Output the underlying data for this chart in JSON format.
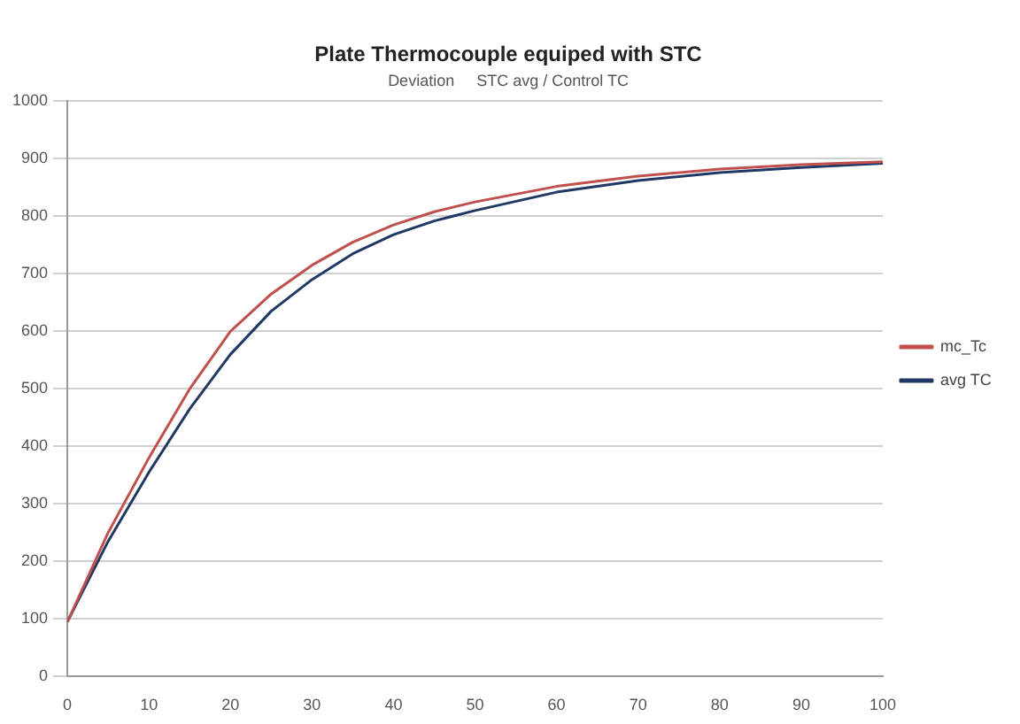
{
  "chart_data": {
    "type": "line",
    "title": "Plate Thermocouple equiped with STC",
    "subtitle": "Deviation     STC avg / Control TC",
    "x": [
      0,
      5,
      10,
      15,
      20,
      25,
      30,
      35,
      40,
      45,
      50,
      60,
      70,
      80,
      90,
      100
    ],
    "series": [
      {
        "name": "mc_Tc",
        "color": "#c0504d",
        "values": [
          95,
          250,
          380,
          500,
          600,
          665,
          715,
          755,
          785,
          808,
          825,
          852,
          870,
          882,
          890,
          895
        ]
      },
      {
        "name": "avg TC",
        "color": "#1f3864",
        "values": [
          95,
          235,
          355,
          465,
          560,
          635,
          690,
          735,
          768,
          792,
          810,
          842,
          862,
          876,
          885,
          892
        ]
      }
    ],
    "xlim": [
      0,
      100
    ],
    "xticks": [
      0,
      10,
      20,
      30,
      40,
      50,
      60,
      70,
      80,
      90,
      100
    ],
    "ylim": [
      0,
      1000
    ],
    "yticks": [
      0,
      100,
      200,
      300,
      400,
      500,
      600,
      700,
      800,
      900,
      1000
    ],
    "grid": "y",
    "legend": "right",
    "marker": "none",
    "line_style": "solid"
  }
}
